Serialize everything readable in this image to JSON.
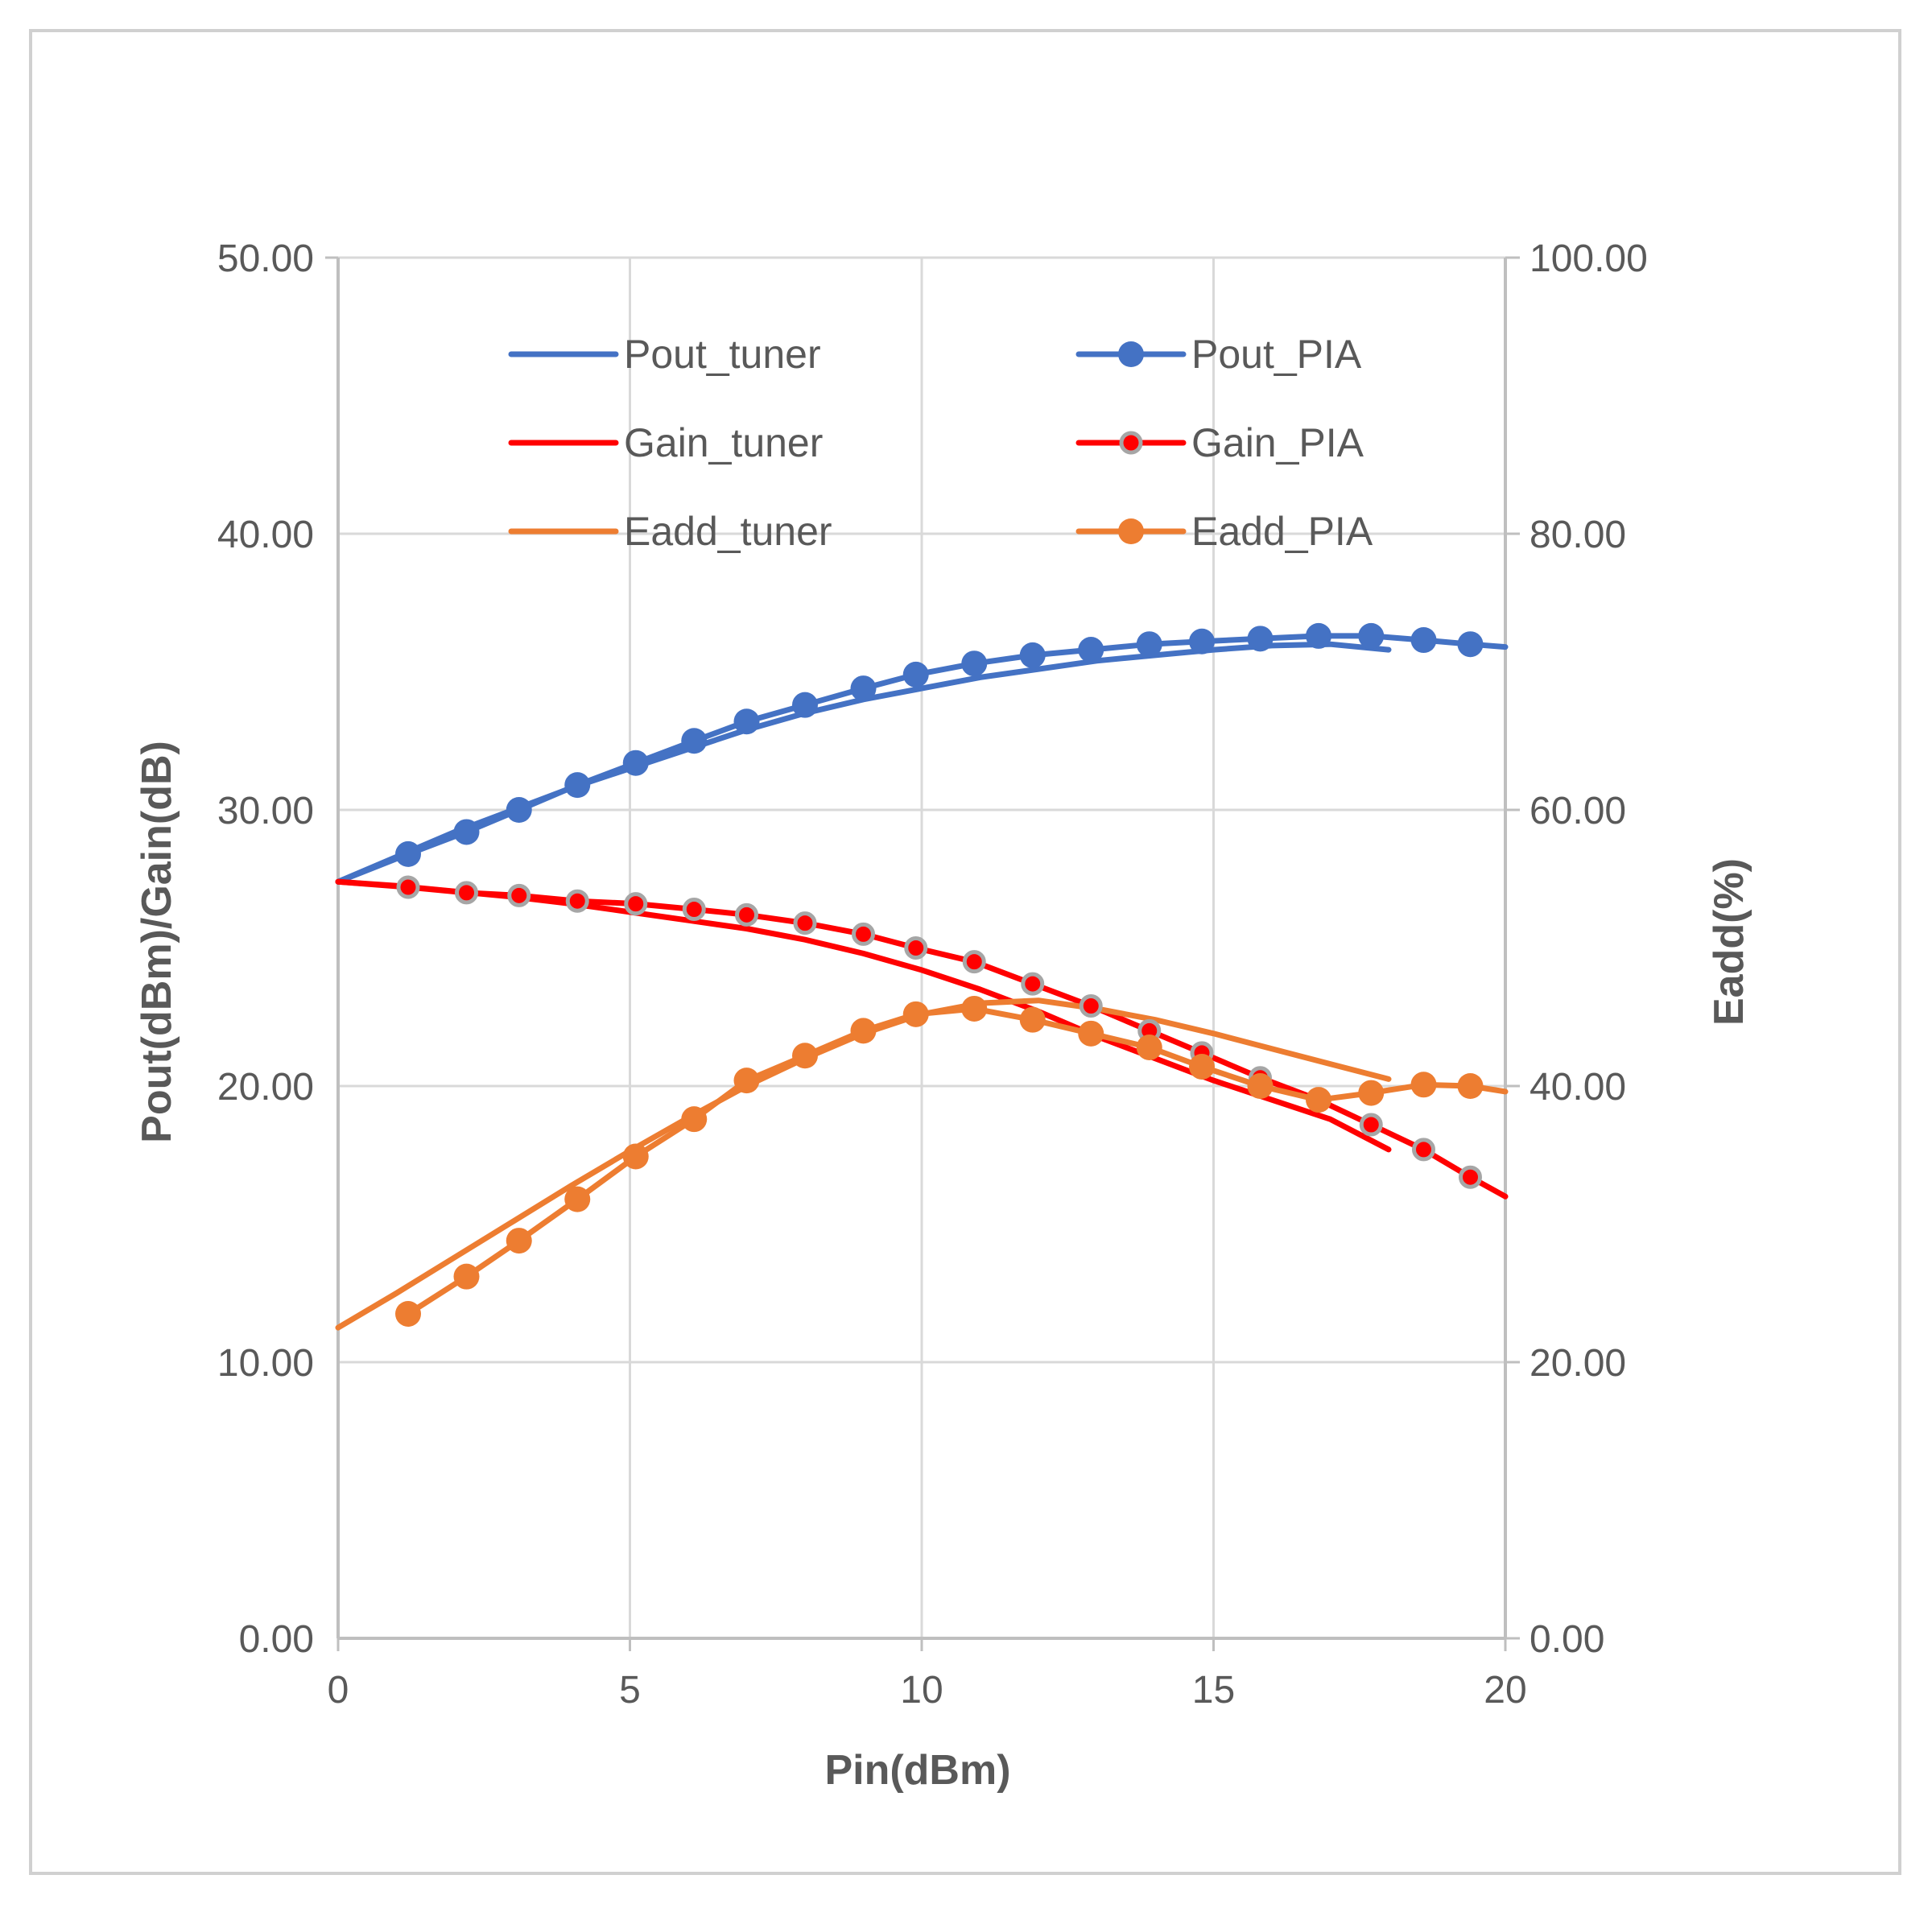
{
  "chart_data": {
    "type": "line",
    "title": "",
    "xlabel": "Pin(dBm)",
    "ylabel_left": "Pout(dBm)/Gain(dB)",
    "ylabel_right": "Eadd(%)",
    "xlim": [
      0,
      20
    ],
    "ylim_left": [
      0,
      50
    ],
    "ylim_right": [
      0,
      100
    ],
    "x_ticks": [
      "0",
      "5",
      "10",
      "15",
      "20"
    ],
    "y_left_ticks": [
      "0.00",
      "10.00",
      "20.00",
      "30.00",
      "40.00",
      "50.00"
    ],
    "y_right_ticks": [
      "0.00",
      "20.00",
      "40.00",
      "60.00",
      "80.00",
      "100.00"
    ],
    "grid": true,
    "legend_position": "top-inside",
    "colors": {
      "blue": "#4472c4",
      "red": "#ff0000",
      "orange": "#ed7d31",
      "grid": "#d9d9d9",
      "axis": "#bfbfbf",
      "text": "#595959"
    },
    "series": [
      {
        "name": "Pout_tuner",
        "axis": "left",
        "color": "#4472c4",
        "markers": false,
        "x": [
          0,
          1,
          2,
          3,
          4,
          5,
          6,
          7,
          8,
          9,
          10,
          11,
          12,
          13,
          14,
          15,
          16,
          17,
          18
        ],
        "y": [
          27.4,
          28.3,
          29.2,
          30.0,
          30.8,
          31.5,
          32.2,
          32.9,
          33.5,
          34.0,
          34.4,
          34.8,
          35.1,
          35.4,
          35.6,
          35.8,
          35.95,
          36.0,
          35.8
        ]
      },
      {
        "name": "Pout_PIA",
        "axis": "left",
        "color": "#4472c4",
        "markers": true,
        "marker_color": "#4472c4",
        "x": [
          0,
          1.2,
          2.2,
          3.1,
          4.1,
          5.1,
          6.1,
          7.0,
          8.0,
          9.0,
          9.9,
          10.9,
          11.9,
          12.9,
          13.9,
          14.8,
          15.8,
          16.8,
          17.7,
          18.6,
          19.4,
          20
        ],
        "y": [
          27.4,
          28.4,
          29.2,
          30.0,
          30.9,
          31.7,
          32.5,
          33.2,
          33.8,
          34.4,
          34.9,
          35.3,
          35.6,
          35.8,
          36.0,
          36.1,
          36.2,
          36.3,
          36.3,
          36.15,
          36.0,
          35.9
        ]
      },
      {
        "name": "Gain_tuner",
        "axis": "left",
        "color": "#ff0000",
        "markers": false,
        "x": [
          0,
          1,
          2,
          3,
          4,
          5,
          6,
          7,
          8,
          9,
          10,
          11,
          12,
          13,
          14,
          15,
          16,
          17,
          18
        ],
        "y": [
          27.4,
          27.25,
          27.05,
          26.85,
          26.6,
          26.3,
          26.0,
          25.7,
          25.3,
          24.8,
          24.2,
          23.5,
          22.7,
          21.8,
          21.0,
          20.2,
          19.5,
          18.8,
          17.7
        ]
      },
      {
        "name": "Gain_PIA",
        "axis": "left",
        "color": "#ff0000",
        "markers": true,
        "marker_color": "#ff0000",
        "marker_edge": "#a6a6a6",
        "x": [
          0,
          1.2,
          2.2,
          3.1,
          4.1,
          5.1,
          6.1,
          7.0,
          8.0,
          9.0,
          9.9,
          10.9,
          11.9,
          12.9,
          13.9,
          14.8,
          15.8,
          16.8,
          17.7,
          18.6,
          19.4,
          20
        ],
        "y": [
          27.4,
          27.2,
          27.0,
          26.9,
          26.7,
          26.6,
          26.4,
          26.2,
          25.9,
          25.5,
          25.0,
          24.5,
          23.7,
          22.9,
          22.0,
          21.2,
          20.3,
          19.5,
          18.6,
          17.7,
          16.7,
          16.0
        ]
      },
      {
        "name": "Eadd_tuner",
        "axis": "right",
        "color": "#ed7d31",
        "markers": false,
        "x": [
          0,
          1,
          2,
          3,
          4,
          5,
          6,
          7,
          8,
          9,
          10,
          11,
          12,
          13,
          14,
          15,
          16,
          17,
          18
        ],
        "y": [
          22.5,
          25.0,
          27.6,
          30.2,
          32.8,
          35.3,
          37.7,
          40.0,
          42.0,
          43.8,
          45.2,
          46.0,
          46.2,
          45.6,
          44.8,
          43.8,
          42.7,
          41.6,
          40.5
        ]
      },
      {
        "name": "Eadd_PIA",
        "axis": "right",
        "color": "#ed7d31",
        "markers": true,
        "marker_color": "#ed7d31",
        "x": [
          1.2,
          2.2,
          3.1,
          4.1,
          5.1,
          6.1,
          7.0,
          8.0,
          9.0,
          9.9,
          10.9,
          11.9,
          12.9,
          13.9,
          14.8,
          15.8,
          16.8,
          17.7,
          18.6,
          19.4,
          20
        ],
        "y": [
          23.5,
          26.2,
          28.8,
          31.8,
          34.9,
          37.6,
          40.4,
          42.2,
          44.0,
          45.2,
          45.6,
          44.8,
          43.8,
          42.8,
          41.4,
          40.0,
          39.0,
          39.5,
          40.1,
          40.0,
          39.6
        ]
      }
    ]
  }
}
